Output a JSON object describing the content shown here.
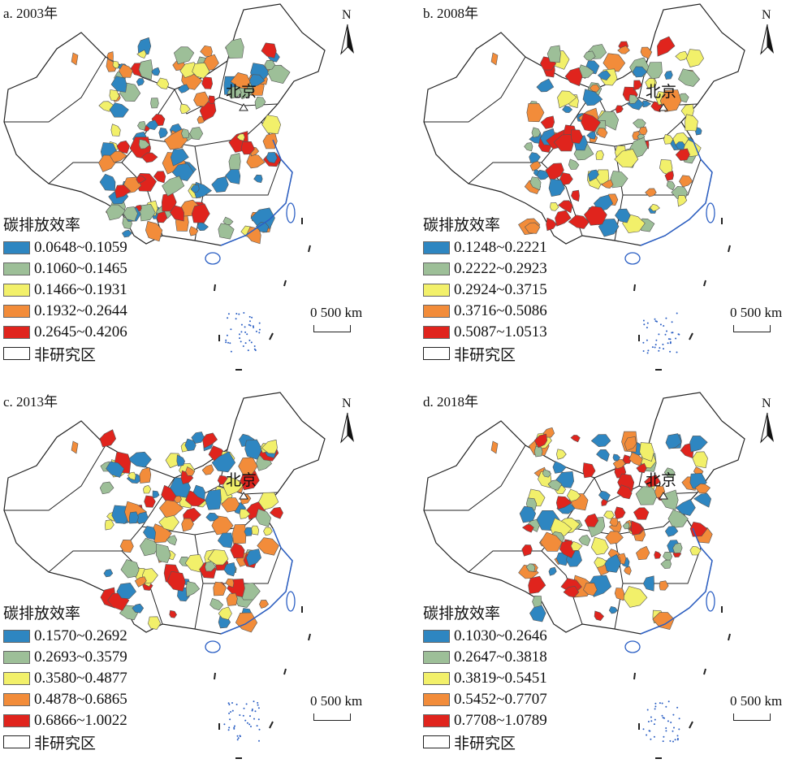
{
  "legend_colors": [
    "#2e86c1",
    "#9dbf98",
    "#f2f06a",
    "#f28c3a",
    "#e0241d"
  ],
  "legend_title": "碳排放效率",
  "non_study_label": "非研究区",
  "north_label": "N",
  "beijing_label": "北京",
  "scale_label": "0   500 km",
  "panels": [
    {
      "title": "a. 2003年",
      "classes": [
        "0.0648~0.1059",
        "0.1060~0.1465",
        "0.1466~0.1931",
        "0.1932~0.2644",
        "0.2645~0.4206"
      ]
    },
    {
      "title": "b. 2008年",
      "classes": [
        "0.1248~0.2221",
        "0.2222~0.2923",
        "0.2924~0.3715",
        "0.3716~0.5086",
        "0.5087~1.0513"
      ]
    },
    {
      "title": "c. 2013年",
      "classes": [
        "0.1570~0.2692",
        "0.2693~0.3579",
        "0.3580~0.4877",
        "0.4878~0.6865",
        "0.6866~1.0022"
      ]
    },
    {
      "title": "d. 2018年",
      "classes": [
        "0.1030~0.2646",
        "0.2647~0.3818",
        "0.3819~0.5451",
        "0.5452~0.7707",
        "0.7708~1.0789"
      ]
    }
  ]
}
